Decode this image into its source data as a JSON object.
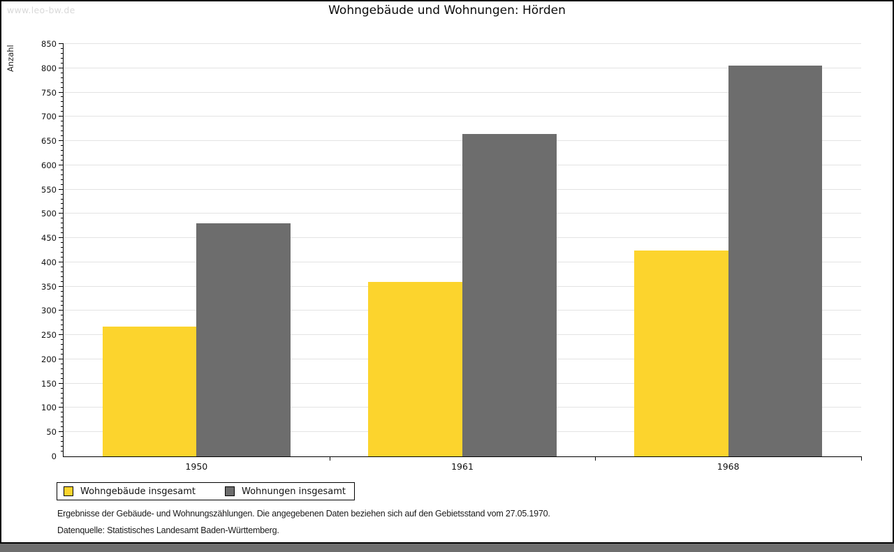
{
  "watermark": "www.leo-bw.de",
  "chart_data": {
    "type": "bar",
    "title": "Wohngebäude und Wohnungen: Hörden",
    "ylabel": "Anzahl",
    "xlabel": "",
    "categories": [
      "1950",
      "1961",
      "1968"
    ],
    "series": [
      {
        "name": "Wohngebäude insgesamt",
        "color": "#fcd42d",
        "values": [
          267,
          359,
          424
        ]
      },
      {
        "name": "Wohnungen insgesamt",
        "color": "#6d6d6d",
        "values": [
          480,
          665,
          805
        ]
      }
    ],
    "ylim": [
      0,
      850
    ],
    "ytick_step": 50,
    "minor_tick_step": 10,
    "grid": true,
    "gridline_color": "#e3e3e3",
    "legend_position": "bottom-left"
  },
  "footnotes": {
    "line1": "Ergebnisse der Gebäude- und Wohnungszählungen. Die angegebenen Daten beziehen sich auf den Gebietsstand vom 27.05.1970.",
    "line2": "Datenquelle: Statistisches Landesamt Baden-Württemberg."
  }
}
